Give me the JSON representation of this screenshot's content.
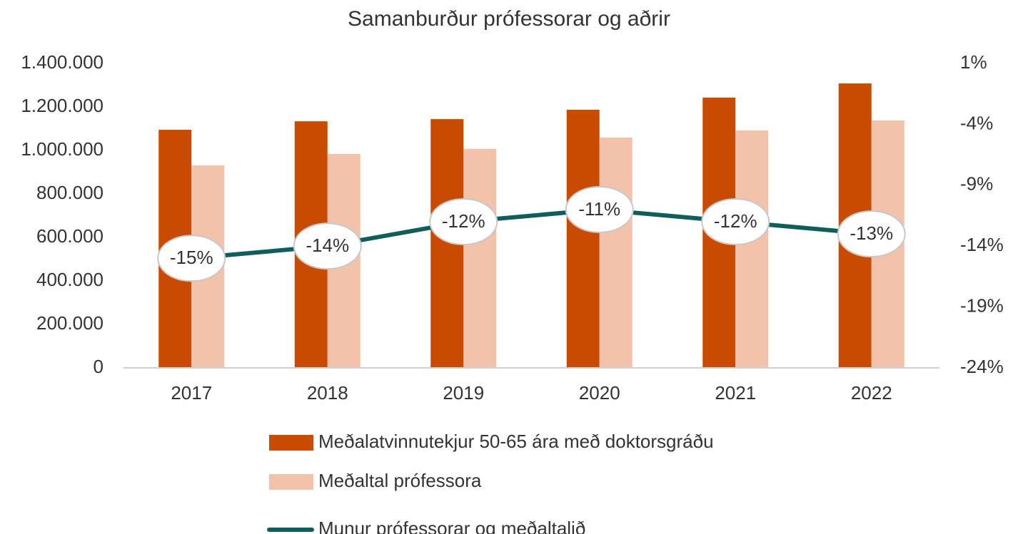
{
  "chart_data": {
    "type": "bar",
    "title": "Samanburður prófessorar og aðrir",
    "categories": [
      "2017",
      "2018",
      "2019",
      "2020",
      "2021",
      "2022"
    ],
    "series": [
      {
        "name": "Meðalatvinnutekjur 50-65 ára með doktorsgráðu",
        "type": "bar",
        "color": "#c84b00",
        "values": [
          1095000,
          1134000,
          1144000,
          1187000,
          1243000,
          1308000
        ]
      },
      {
        "name": "Meðaltal prófessora",
        "type": "bar",
        "color": "#f2c2aa",
        "values": [
          931000,
          984000,
          1007000,
          1059000,
          1092000,
          1138000
        ]
      },
      {
        "name": "Munur prófessorar og meðaltalið",
        "type": "line",
        "axis": "y2",
        "color": "#0f5e5b",
        "values": [
          -15,
          -14,
          -12,
          -11,
          -12,
          -13
        ],
        "value_labels": [
          "-15%",
          "-14%",
          "-12%",
          "-11%",
          "-12%",
          "-13%"
        ]
      }
    ],
    "ylim": [
      0,
      1400000
    ],
    "yticks": [
      0,
      {
        "value": 200000,
        "label": "200.000"
      },
      {
        "value": 400000,
        "label": "400.000"
      },
      {
        "value": 600000,
        "label": "600.000"
      },
      {
        "value": 800000,
        "label": "800.000"
      },
      {
        "value": 1000000,
        "label": "1.000.000"
      },
      {
        "value": 1200000,
        "label": "1.200.000"
      },
      {
        "value": 1400000,
        "label": "1.400.000"
      }
    ],
    "y2lim": [
      -24,
      1
    ],
    "y2ticks": [
      {
        "value": -24,
        "label": "-24%"
      },
      {
        "value": -19,
        "label": "-19%"
      },
      {
        "value": -14,
        "label": "-14%"
      },
      {
        "value": -9,
        "label": "-9%"
      },
      {
        "value": -4,
        "label": "-4%"
      },
      {
        "value": 1,
        "label": "1%"
      }
    ],
    "grid": false,
    "legend": "bottom"
  }
}
